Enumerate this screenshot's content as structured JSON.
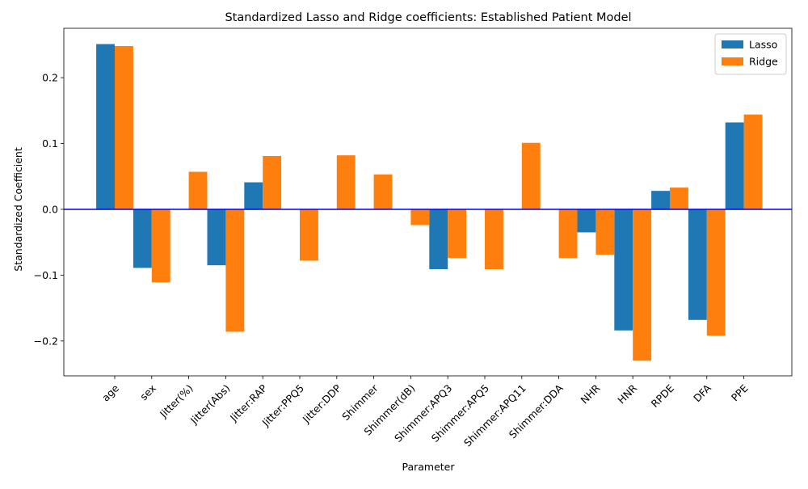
{
  "chart_data": {
    "type": "bar",
    "title": "Standardized Lasso and Ridge coefficients: Established Patient Model",
    "xlabel": "Parameter",
    "ylabel": "Standardized Coefficient",
    "categories": [
      "age",
      "sex",
      "Jitter(%)",
      "Jitter(Abs)",
      "Jitter:RAP",
      "Jitter:PPQ5",
      "Jitter:DDP",
      "Shimmer",
      "Shimmer(dB)",
      "Shimmer:APQ3",
      "Shimmer:APQ5",
      "Shimmer:APQ11",
      "Shimmer:DDA",
      "NHR",
      "HNR",
      "RPDE",
      "DFA",
      "PPE"
    ],
    "series": [
      {
        "name": "Lasso",
        "color": "#1f77b4",
        "values": [
          0.251,
          -0.089,
          0.0,
          -0.085,
          0.041,
          0.0,
          0.0,
          0.0,
          0.0,
          -0.091,
          0.0,
          0.0,
          0.0,
          -0.035,
          -0.184,
          0.028,
          -0.168,
          0.132
        ]
      },
      {
        "name": "Ridge",
        "color": "#ff7f0e",
        "values": [
          0.248,
          -0.111,
          0.057,
          -0.186,
          0.081,
          -0.078,
          0.082,
          0.053,
          -0.024,
          -0.074,
          -0.091,
          0.101,
          -0.074,
          -0.069,
          -0.23,
          0.033,
          -0.192,
          0.144
        ]
      }
    ],
    "ylim": [
      -0.253,
      0.275
    ],
    "yticks": [
      -0.2,
      -0.1,
      0.0,
      0.1,
      0.2
    ],
    "ytick_labels": [
      "−0.2",
      "−0.1",
      "0.0",
      "0.1",
      "0.2"
    ],
    "zero_line": true,
    "zero_line_color": "#0000ff",
    "grid": false,
    "legend_position": "top-right"
  }
}
